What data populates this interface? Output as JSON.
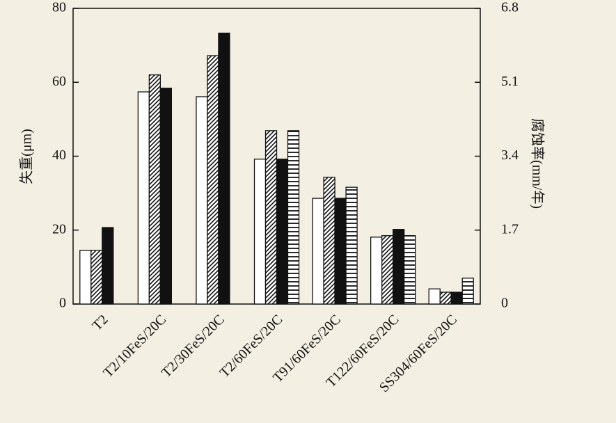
{
  "chart_data": {
    "type": "bar",
    "y_label": "失重(μm)",
    "y2_label": "腐蚀率(mm/年)",
    "categories": [
      "T2",
      "T2/10FeS/20C",
      "T2/30FeS/20C",
      "T2/60FeS/20C",
      "T91/60FeS/20C",
      "T122/60FeS/20C",
      "SS304/60FeS/20C"
    ],
    "series": [
      {
        "color": "#ffffff",
        "pattern": "none",
        "values": [
          14.5,
          57.4,
          56.1,
          39.2,
          28.6,
          18.1,
          4.1
        ]
      },
      {
        "color": "#111111",
        "pattern": "diagonal",
        "values": [
          14.5,
          62,
          67.2,
          46.9,
          34.3,
          18.5,
          3.2
        ]
      },
      {
        "color": "#111111",
        "pattern": "solid",
        "values": [
          20.7,
          58.4,
          73.3,
          39.2,
          28.6,
          20.2,
          3.2
        ]
      },
      {
        "color": "#111111",
        "pattern": "horizontal",
        "values": [
          null,
          null,
          null,
          46.9,
          31.6,
          18.5,
          7.0
        ]
      }
    ],
    "ylim": [
      0,
      80
    ],
    "yticks": [
      0,
      20,
      40,
      60,
      80
    ],
    "y2lim": [
      0,
      6.8
    ],
    "y2ticks": [
      0,
      1.7,
      3.4,
      5.1,
      6.8
    ]
  }
}
